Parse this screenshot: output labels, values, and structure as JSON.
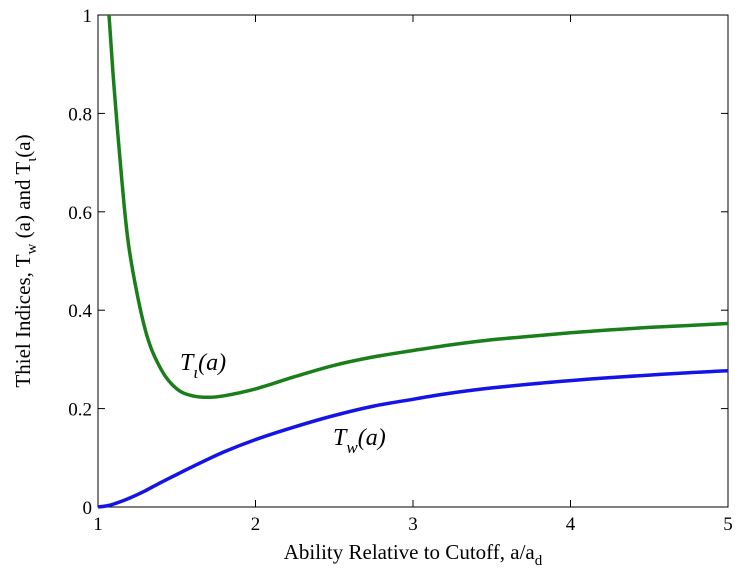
{
  "chart_data": {
    "type": "line",
    "title": "",
    "xlabel": "Ability Relative to Cutoff, a/a_d",
    "xlabel_main": "Ability Relative to Cutoff, a/a",
    "xlabel_sub": "d",
    "ylabel": "Thiel Indices, T_w(a) and T_ι(a)",
    "ylabel_parts": {
      "p1": "Thiel Indices, T",
      "s1": "w",
      "p2": " (a) and T",
      "s2": "ι",
      "p3": "(a)"
    },
    "xlim": [
      1,
      5
    ],
    "ylim": [
      0,
      1
    ],
    "xticks": [
      1,
      2,
      3,
      4,
      5
    ],
    "yticks": [
      0,
      0.2,
      0.4,
      0.6,
      0.8,
      1
    ],
    "xtick_labels": [
      "1",
      "2",
      "3",
      "4",
      "5"
    ],
    "ytick_labels": [
      "0",
      "0.2",
      "0.4",
      "0.6",
      "0.8",
      "1"
    ],
    "grid": false,
    "series": [
      {
        "name": "T_ι(a)",
        "label_main": "T",
        "label_sub": "ι",
        "label_tail": "(a)",
        "color": "#1a7f1a",
        "x": [
          1.07,
          1.1,
          1.15,
          1.2,
          1.3,
          1.4,
          1.5,
          1.6,
          1.7,
          1.8,
          2.0,
          2.25,
          2.5,
          2.75,
          3.0,
          3.25,
          3.5,
          3.75,
          4.0,
          4.25,
          4.5,
          4.75,
          5.0
        ],
        "values": [
          1.0,
          0.86,
          0.67,
          0.52,
          0.36,
          0.28,
          0.24,
          0.226,
          0.223,
          0.226,
          0.24,
          0.265,
          0.288,
          0.305,
          0.318,
          0.33,
          0.34,
          0.347,
          0.354,
          0.36,
          0.365,
          0.369,
          0.373
        ]
      },
      {
        "name": "T_w(a)",
        "label_main": "T",
        "label_sub": "w",
        "label_tail": "(a)",
        "color": "#1414e6",
        "x": [
          1.0,
          1.05,
          1.1,
          1.2,
          1.3,
          1.4,
          1.5,
          1.6,
          1.8,
          2.0,
          2.25,
          2.5,
          2.75,
          3.0,
          3.25,
          3.5,
          3.75,
          4.0,
          4.25,
          4.5,
          4.75,
          5.0
        ],
        "values": [
          0.0,
          0.002,
          0.006,
          0.018,
          0.033,
          0.05,
          0.066,
          0.082,
          0.112,
          0.137,
          0.163,
          0.186,
          0.205,
          0.219,
          0.232,
          0.242,
          0.25,
          0.257,
          0.263,
          0.268,
          0.273,
          0.277
        ]
      }
    ]
  }
}
